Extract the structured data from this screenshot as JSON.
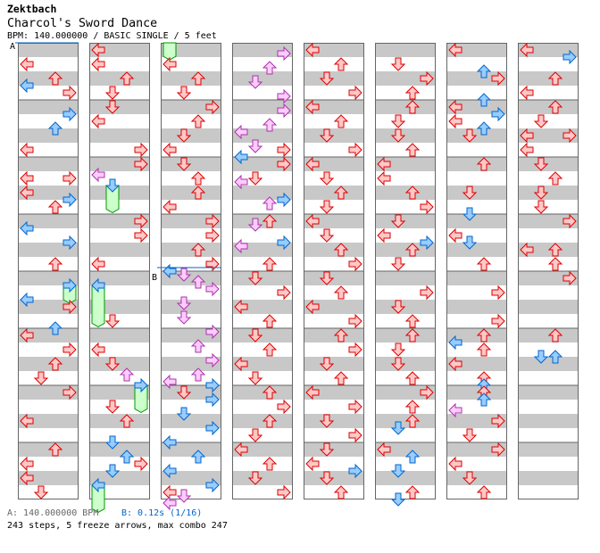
{
  "header": {
    "artist": "Zektbach",
    "title": "Charcol's Sword Dance",
    "info": "BPM: 140.000000 / BASIC SINGLE / 5 feet"
  },
  "markers": {
    "a": "A",
    "b": "B"
  },
  "footer": {
    "bpm_a": "A: 140.000000 BPM",
    "bpm_b": "B: 0.12s (1/16)",
    "summary": "243 steps, 5 freeze arrows, max combo 247"
  },
  "colors": {
    "q": {
      "fill": "#ffc8c8",
      "stroke": "#dd0000"
    },
    "e": {
      "fill": "#99ccff",
      "stroke": "#0066cc"
    },
    "s": {
      "fill": "#ffccff",
      "stroke": "#aa33aa"
    },
    "freeze": {
      "fill": "#ccffcc",
      "stroke": "#009900"
    },
    "band": "#c8c8c8",
    "marker_line": "#0066cc"
  },
  "chart": {
    "lanes": [
      "left",
      "down",
      "up",
      "right"
    ],
    "beats_per_column": 32,
    "marker_b_beat": 15.5,
    "marker_b_column": 2,
    "columns": [
      {
        "notes": [
          [
            1,
            0,
            "q"
          ],
          [
            2,
            2,
            "q"
          ],
          [
            2.5,
            0,
            "e"
          ],
          [
            3,
            3,
            "q"
          ],
          [
            4.5,
            3,
            "e"
          ],
          [
            5.5,
            2,
            "e"
          ],
          [
            7,
            0,
            "q"
          ],
          [
            9,
            0,
            "q"
          ],
          [
            9,
            3,
            "q"
          ],
          [
            10,
            0,
            "q"
          ],
          [
            10.5,
            3,
            "e"
          ],
          [
            11,
            2,
            "q"
          ],
          [
            12.5,
            0,
            "e"
          ],
          [
            13.5,
            3,
            "e"
          ],
          [
            15,
            2,
            "q"
          ],
          [
            16.5,
            3,
            "e"
          ],
          [
            17.5,
            0,
            "e"
          ],
          [
            18,
            3,
            "q"
          ],
          [
            19.5,
            2,
            "e"
          ],
          [
            20,
            0,
            "q"
          ],
          [
            21,
            3,
            "q"
          ],
          [
            22,
            2,
            "q"
          ],
          [
            23,
            1,
            "q"
          ],
          [
            24,
            3,
            "q"
          ],
          [
            26,
            0,
            "q"
          ],
          [
            28,
            2,
            "q"
          ],
          [
            29,
            0,
            "q"
          ],
          [
            30,
            0,
            "q"
          ],
          [
            31,
            1,
            "q"
          ]
        ],
        "freezes": [
          [
            16.5,
            17.75,
            3
          ]
        ]
      },
      {
        "notes": [
          [
            0,
            0,
            "q"
          ],
          [
            1,
            0,
            "q"
          ],
          [
            2,
            2,
            "q"
          ],
          [
            3,
            1,
            "q"
          ],
          [
            4,
            1,
            "q"
          ],
          [
            5,
            0,
            "q"
          ],
          [
            7,
            3,
            "q"
          ],
          [
            8,
            3,
            "q"
          ],
          [
            8.75,
            0,
            "s"
          ],
          [
            9.5,
            1,
            "e"
          ],
          [
            12,
            3,
            "q"
          ],
          [
            13,
            3,
            "q"
          ],
          [
            15,
            0,
            "q"
          ],
          [
            16.5,
            0,
            "e"
          ],
          [
            19,
            1,
            "q"
          ],
          [
            21,
            0,
            "q"
          ],
          [
            22,
            1,
            "q"
          ],
          [
            22.75,
            2,
            "s"
          ],
          [
            23.5,
            3,
            "e"
          ],
          [
            25,
            1,
            "q"
          ],
          [
            26,
            2,
            "q"
          ],
          [
            27.5,
            1,
            "e"
          ],
          [
            28.5,
            2,
            "e"
          ],
          [
            29,
            3,
            "q"
          ],
          [
            29.5,
            1,
            "e"
          ],
          [
            30.5,
            0,
            "e"
          ]
        ],
        "freezes": [
          [
            9.5,
            11.4,
            1
          ],
          [
            16.5,
            19.4,
            0
          ],
          [
            23.5,
            25.4,
            3
          ],
          [
            30.5,
            32.4,
            0
          ]
        ]
      },
      {
        "notes": [
          [
            1,
            0,
            "q"
          ],
          [
            2,
            2,
            "q"
          ],
          [
            3,
            1,
            "q"
          ],
          [
            4,
            3,
            "q"
          ],
          [
            5,
            2,
            "q"
          ],
          [
            6,
            1,
            "q"
          ],
          [
            7,
            0,
            "q"
          ],
          [
            8,
            1,
            "q"
          ],
          [
            9,
            2,
            "q"
          ],
          [
            10,
            2,
            "q"
          ],
          [
            11,
            0,
            "q"
          ],
          [
            12,
            3,
            "q"
          ],
          [
            13,
            3,
            "q"
          ],
          [
            14,
            2,
            "q"
          ],
          [
            15,
            3,
            "q"
          ],
          [
            15.5,
            0,
            "e"
          ],
          [
            15.75,
            1,
            "s"
          ],
          [
            16.25,
            2,
            "s"
          ],
          [
            16.75,
            3,
            "s"
          ],
          [
            17.75,
            1,
            "s"
          ],
          [
            18.75,
            1,
            "s"
          ],
          [
            19.75,
            3,
            "s"
          ],
          [
            20.75,
            2,
            "s"
          ],
          [
            21.75,
            3,
            "s"
          ],
          [
            22.75,
            2,
            "s"
          ],
          [
            23.25,
            0,
            "s"
          ],
          [
            23.5,
            3,
            "e"
          ],
          [
            24,
            1,
            "q"
          ],
          [
            24.5,
            3,
            "e"
          ],
          [
            25.5,
            1,
            "e"
          ],
          [
            26.5,
            3,
            "e"
          ],
          [
            27.5,
            0,
            "e"
          ],
          [
            28.5,
            2,
            "e"
          ],
          [
            29.5,
            0,
            "e"
          ],
          [
            30.5,
            3,
            "e"
          ],
          [
            31,
            0,
            "q"
          ],
          [
            31.25,
            1,
            "s"
          ],
          [
            31.75,
            0,
            "s"
          ]
        ],
        "freezes": [
          [
            -0.5,
            0.7,
            0
          ]
        ]
      },
      {
        "notes": [
          [
            0.25,
            3,
            "s"
          ],
          [
            1.25,
            2,
            "s"
          ],
          [
            2.25,
            1,
            "s"
          ],
          [
            3.25,
            3,
            "s"
          ],
          [
            4.25,
            3,
            "s"
          ],
          [
            5.25,
            2,
            "s"
          ],
          [
            5.75,
            0,
            "s"
          ],
          [
            6.75,
            1,
            "s"
          ],
          [
            7,
            3,
            "q"
          ],
          [
            7.5,
            0,
            "e"
          ],
          [
            8,
            3,
            "q"
          ],
          [
            9,
            1,
            "q"
          ],
          [
            9.25,
            0,
            "s"
          ],
          [
            10.5,
            3,
            "e"
          ],
          [
            10.75,
            2,
            "s"
          ],
          [
            12,
            2,
            "q"
          ],
          [
            12.25,
            1,
            "s"
          ],
          [
            13.5,
            3,
            "e"
          ],
          [
            13.75,
            0,
            "s"
          ],
          [
            15,
            2,
            "q"
          ],
          [
            16,
            1,
            "q"
          ],
          [
            17,
            3,
            "q"
          ],
          [
            18,
            0,
            "q"
          ],
          [
            19,
            2,
            "q"
          ],
          [
            20,
            1,
            "q"
          ],
          [
            21,
            2,
            "q"
          ],
          [
            22,
            0,
            "q"
          ],
          [
            23,
            1,
            "q"
          ],
          [
            24,
            2,
            "q"
          ],
          [
            25,
            3,
            "q"
          ],
          [
            26,
            2,
            "q"
          ],
          [
            27,
            1,
            "q"
          ],
          [
            28,
            0,
            "q"
          ],
          [
            29,
            2,
            "q"
          ],
          [
            30,
            1,
            "q"
          ],
          [
            31,
            3,
            "q"
          ]
        ],
        "freezes": []
      },
      {
        "notes": [
          [
            0,
            0,
            "q"
          ],
          [
            1,
            2,
            "q"
          ],
          [
            2,
            1,
            "q"
          ],
          [
            3,
            3,
            "q"
          ],
          [
            4,
            0,
            "q"
          ],
          [
            5,
            2,
            "q"
          ],
          [
            6,
            1,
            "q"
          ],
          [
            7,
            3,
            "q"
          ],
          [
            8,
            0,
            "q"
          ],
          [
            9,
            1,
            "q"
          ],
          [
            10,
            2,
            "q"
          ],
          [
            11,
            1,
            "q"
          ],
          [
            12,
            0,
            "q"
          ],
          [
            13,
            1,
            "q"
          ],
          [
            14,
            2,
            "q"
          ],
          [
            15,
            3,
            "q"
          ],
          [
            16,
            1,
            "q"
          ],
          [
            17,
            2,
            "q"
          ],
          [
            18,
            0,
            "q"
          ],
          [
            19,
            3,
            "q"
          ],
          [
            20,
            2,
            "q"
          ],
          [
            21,
            3,
            "q"
          ],
          [
            22,
            1,
            "q"
          ],
          [
            23,
            2,
            "q"
          ],
          [
            24,
            0,
            "q"
          ],
          [
            25,
            3,
            "q"
          ],
          [
            26,
            1,
            "q"
          ],
          [
            27,
            3,
            "q"
          ],
          [
            28,
            1,
            "q"
          ],
          [
            29,
            0,
            "q"
          ],
          [
            29.5,
            3,
            "e"
          ],
          [
            30,
            1,
            "q"
          ],
          [
            31,
            2,
            "q"
          ]
        ],
        "freezes": []
      },
      {
        "notes": [
          [
            1,
            1,
            "q"
          ],
          [
            2,
            3,
            "q"
          ],
          [
            3,
            2,
            "q"
          ],
          [
            4,
            2,
            "q"
          ],
          [
            5,
            1,
            "q"
          ],
          [
            6,
            1,
            "q"
          ],
          [
            7,
            2,
            "q"
          ],
          [
            8,
            0,
            "q"
          ],
          [
            9,
            0,
            "q"
          ],
          [
            10,
            2,
            "q"
          ],
          [
            11,
            3,
            "q"
          ],
          [
            12,
            1,
            "q"
          ],
          [
            13,
            0,
            "q"
          ],
          [
            13.5,
            3,
            "e"
          ],
          [
            14,
            2,
            "q"
          ],
          [
            15,
            1,
            "q"
          ],
          [
            17,
            3,
            "q"
          ],
          [
            18,
            1,
            "q"
          ],
          [
            19,
            2,
            "q"
          ],
          [
            20,
            2,
            "q"
          ],
          [
            21,
            1,
            "q"
          ],
          [
            22,
            1,
            "q"
          ],
          [
            23,
            2,
            "q"
          ],
          [
            24,
            3,
            "q"
          ],
          [
            25,
            2,
            "q"
          ],
          [
            26,
            2,
            "q"
          ],
          [
            26.5,
            1,
            "e"
          ],
          [
            28,
            0,
            "q"
          ],
          [
            28.5,
            2,
            "e"
          ],
          [
            29.5,
            1,
            "e"
          ],
          [
            31,
            2,
            "q"
          ],
          [
            31.5,
            1,
            "e"
          ]
        ],
        "freezes": []
      },
      {
        "notes": [
          [
            0,
            0,
            "q"
          ],
          [
            1.5,
            2,
            "e"
          ],
          [
            2,
            3,
            "q"
          ],
          [
            3.5,
            2,
            "e"
          ],
          [
            4,
            0,
            "q"
          ],
          [
            4.5,
            3,
            "e"
          ],
          [
            5,
            0,
            "q"
          ],
          [
            5.5,
            2,
            "e"
          ],
          [
            6,
            1,
            "q"
          ],
          [
            8,
            2,
            "q"
          ],
          [
            10,
            1,
            "q"
          ],
          [
            11.5,
            1,
            "e"
          ],
          [
            13,
            0,
            "q"
          ],
          [
            13.5,
            1,
            "e"
          ],
          [
            15,
            2,
            "q"
          ],
          [
            17,
            3,
            "q"
          ],
          [
            19,
            3,
            "q"
          ],
          [
            20,
            2,
            "q"
          ],
          [
            20.5,
            0,
            "e"
          ],
          [
            21,
            2,
            "q"
          ],
          [
            22,
            0,
            "q"
          ],
          [
            23,
            2,
            "q"
          ],
          [
            23.5,
            2,
            "e"
          ],
          [
            24,
            2,
            "q"
          ],
          [
            24.5,
            2,
            "e"
          ],
          [
            25.25,
            0,
            "s"
          ],
          [
            26,
            3,
            "q"
          ],
          [
            27,
            1,
            "q"
          ],
          [
            28,
            3,
            "q"
          ],
          [
            29,
            0,
            "q"
          ],
          [
            30,
            1,
            "q"
          ],
          [
            31,
            2,
            "q"
          ]
        ],
        "freezes": []
      },
      {
        "notes": [
          [
            0,
            0,
            "q"
          ],
          [
            0.5,
            3,
            "e"
          ],
          [
            2,
            2,
            "q"
          ],
          [
            3,
            0,
            "q"
          ],
          [
            4,
            2,
            "q"
          ],
          [
            5,
            1,
            "q"
          ],
          [
            6,
            0,
            "q"
          ],
          [
            6,
            3,
            "q"
          ],
          [
            7,
            0,
            "q"
          ],
          [
            8,
            1,
            "q"
          ],
          [
            9,
            2,
            "q"
          ],
          [
            10,
            1,
            "q"
          ],
          [
            11,
            1,
            "q"
          ],
          [
            12,
            3,
            "q"
          ],
          [
            14,
            0,
            "q"
          ],
          [
            14,
            2,
            "q"
          ],
          [
            15,
            2,
            "q"
          ],
          [
            16,
            3,
            "q"
          ],
          [
            20,
            2,
            "q"
          ],
          [
            21.5,
            1,
            "e"
          ],
          [
            21.5,
            2,
            "e"
          ]
        ],
        "freezes": []
      }
    ]
  }
}
